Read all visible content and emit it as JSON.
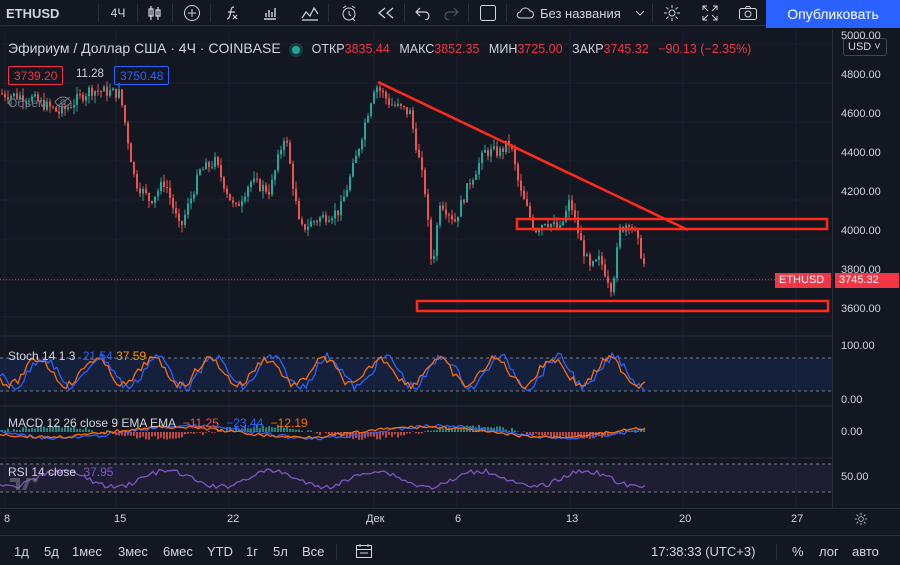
{
  "toolbar": {
    "symbol": "ETHUSD",
    "interval": "4Ч",
    "layout_name": "Без названия",
    "publish_label": "Опубликовать"
  },
  "legend": {
    "title": "Эфириум / Доллар США · 4Ч · COINBASE",
    "open_label": "ОТКР",
    "open": "3835.44",
    "high_label": "МАКС",
    "high": "3852.35",
    "low_label": "МИН",
    "low": "3725.00",
    "close_label": "ЗАКР",
    "close": "3745.32",
    "change": "−90.13 (−2.35%)",
    "bid": "3739.20",
    "spread": "11.28",
    "ask": "3750.48",
    "volume_label": "Объем"
  },
  "price_axis": {
    "currency": "USD",
    "ticks": [
      "5000.00",
      "4800.00",
      "4600.00",
      "4400.00",
      "4200.00",
      "4000.00",
      "3800.00",
      "3600.00"
    ],
    "last_symbol": "ETHUSD",
    "last_price": "3745.32"
  },
  "indicators": {
    "stoch": {
      "label": "Stoch 14 1 3",
      "k": "21.54",
      "d": "37.59",
      "ticks": [
        "100.00",
        "0.00"
      ]
    },
    "macd": {
      "label": "MACD 12 26 close 9 EMA EMA",
      "hist": "−11.25",
      "macd": "−23.44",
      "signal": "−12.19",
      "ticks": [
        "0.00"
      ]
    },
    "rsi": {
      "label": "RSI 14 close",
      "value": "37.95",
      "ticks": [
        "50.00"
      ]
    }
  },
  "time_axis": {
    "labels": [
      "8",
      "15",
      "22",
      "Дек",
      "6",
      "13",
      "20",
      "27"
    ]
  },
  "bottom_bar": {
    "ranges": [
      "1д",
      "5д",
      "1мес",
      "3мес",
      "6мес",
      "YTD",
      "1г",
      "5л",
      "Все"
    ],
    "clock": "17:38:33 (UTC+3)",
    "percent": "%",
    "log": "лог",
    "auto": "авто"
  },
  "colors": {
    "background": "#131722",
    "up": "#26a69a",
    "down": "#ef5350",
    "drawing": "#ff2a1a",
    "accent": "#2962ff",
    "stoch_k": "#2962ff",
    "stoch_d": "#ff6d00",
    "rsi": "#7e57c2"
  }
}
